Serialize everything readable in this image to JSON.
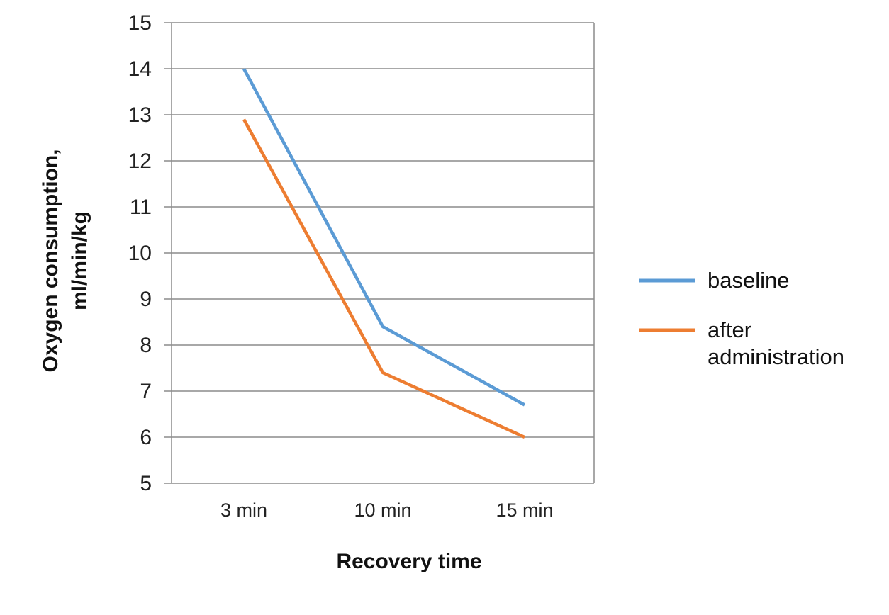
{
  "chart_data": {
    "type": "line",
    "categories": [
      "3 min",
      "10 min",
      "15 min"
    ],
    "series": [
      {
        "name": "baseline",
        "values": [
          14.0,
          8.4,
          6.7
        ],
        "color": "#5b9bd5"
      },
      {
        "name": "after administration",
        "name_lines": [
          "after",
          "administration"
        ],
        "values": [
          12.9,
          7.4,
          6.0
        ],
        "color": "#ed7d31"
      }
    ],
    "xlabel": "Recovery time",
    "ylabel_lines": [
      "Oxygen consumption,",
      "ml/min/kg"
    ],
    "ylim": [
      5,
      15
    ],
    "yticks": [
      5,
      6,
      7,
      8,
      9,
      10,
      11,
      12,
      13,
      14,
      15
    ],
    "grid": true,
    "legend_position": "right"
  }
}
